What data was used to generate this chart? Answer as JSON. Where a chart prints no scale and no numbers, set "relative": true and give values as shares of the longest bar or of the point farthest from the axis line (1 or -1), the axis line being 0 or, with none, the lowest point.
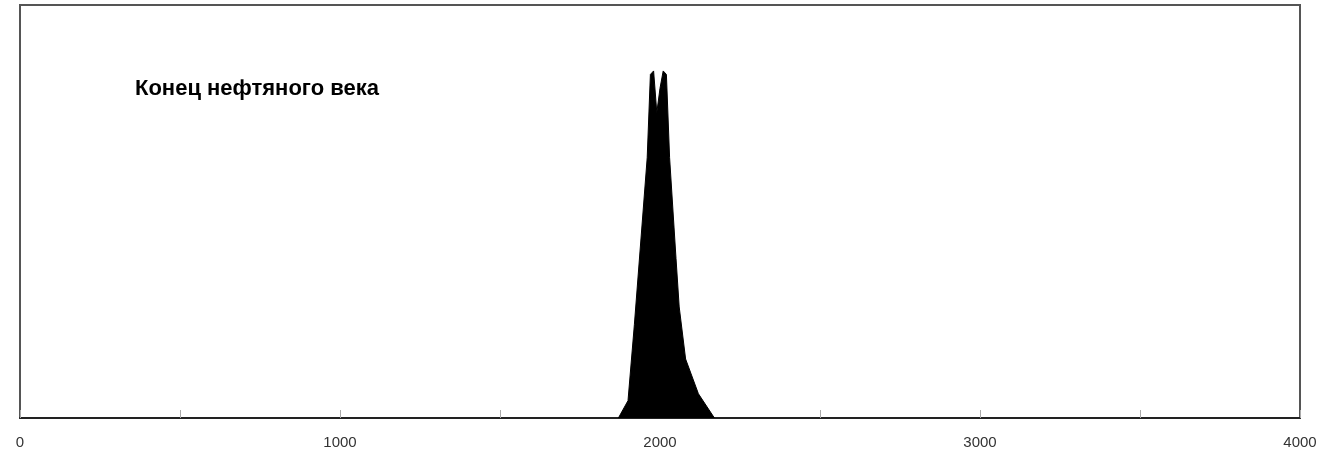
{
  "chart_data": {
    "type": "area",
    "relative": true,
    "annotations": [
      "Конец нефтяного века"
    ],
    "x": [
      1870,
      1900,
      1920,
      1940,
      1960,
      1970,
      1980,
      1990,
      2000,
      2010,
      2020,
      2030,
      2050,
      2060,
      2080,
      2120,
      2170
    ],
    "series": [
      {
        "color": "#000000",
        "values": [
          0,
          0.05,
          0.27,
          0.51,
          0.75,
          0.99,
          1,
          0.88,
          0.95,
          1,
          0.99,
          0.75,
          0.46,
          0.32,
          0.17,
          0.07,
          0
        ]
      }
    ],
    "xlim": [
      0,
      4000
    ],
    "xticks": [
      0,
      {
        "value": 500,
        "label": null
      },
      1000,
      {
        "value": 1500,
        "label": null
      },
      2000,
      {
        "value": 2500,
        "label": null
      },
      3000,
      {
        "value": 3500,
        "label": null
      },
      4000
    ],
    "tick_labels": "x",
    "grid": false
  }
}
